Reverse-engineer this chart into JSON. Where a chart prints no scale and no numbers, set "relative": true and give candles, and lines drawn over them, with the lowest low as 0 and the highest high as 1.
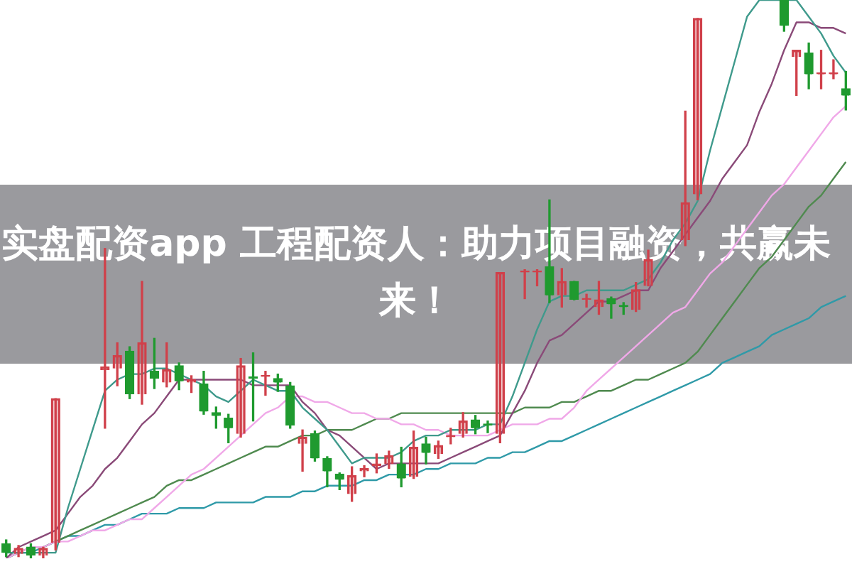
{
  "chart_data": {
    "type": "candlestick",
    "title": "实盘配资app 工程配资人：助力项目融资，共赢未来！",
    "relative": true,
    "categories": [
      null,
      null,
      null,
      null,
      null,
      null,
      null,
      null,
      null,
      null,
      null,
      null,
      null,
      null,
      null,
      null,
      null,
      null,
      null,
      null,
      null,
      null,
      null,
      null,
      null,
      null,
      null,
      null,
      null,
      null,
      null,
      null,
      null,
      null,
      null,
      null,
      null,
      null,
      null,
      null,
      null,
      null,
      null,
      null,
      null,
      null,
      null,
      null,
      null,
      null,
      null,
      null,
      null,
      null,
      null,
      null,
      null,
      null,
      null,
      null,
      null,
      null,
      null,
      null,
      null,
      null,
      null,
      null,
      null
    ],
    "ohlc": [
      [
        0.026,
        0.033,
        0.003,
        0.01
      ],
      [
        0.008,
        0.023,
        0.003,
        0.018
      ],
      [
        0.02,
        0.026,
        0,
        0.005
      ],
      [
        0.005,
        0.02,
        0,
        0.018
      ],
      [
        0.028,
        0.286,
        0.015,
        0.286
      ],
      null,
      null,
      null,
      [
        0.338,
        0.555,
        0.233,
        0.343
      ],
      [
        0.34,
        0.386,
        0.309,
        0.363
      ],
      [
        0.371,
        0.379,
        0.286,
        0.294
      ],
      [
        0.294,
        0.496,
        0.276,
        0.386
      ],
      [
        0.335,
        0.394,
        0.304,
        0.322
      ],
      [
        0.315,
        0.386,
        0.307,
        0.338
      ],
      [
        0.345,
        0.35,
        0.302,
        0.317
      ],
      [
        0.315,
        0.327,
        0.297,
        0.32
      ],
      [
        0.312,
        0.335,
        0.258,
        0.263
      ],
      [
        0.261,
        0.271,
        0.233,
        0.256
      ],
      [
        0.251,
        0.258,
        0.207,
        0.233
      ],
      [
        0.223,
        0.358,
        0.217,
        0.345
      ],
      [
        0.325,
        0.368,
        0.246,
        0.322
      ],
      [
        0.325,
        0.335,
        0.292,
        0.327
      ],
      [
        0.322,
        0.33,
        0.299,
        0.315
      ],
      [
        0.309,
        0.315,
        0.233,
        0.238
      ],
      [
        0.205,
        0.23,
        0.156,
        0.217
      ],
      [
        0.223,
        0.228,
        0.174,
        0.179
      ],
      [
        0.179,
        0.182,
        0.128,
        0.156
      ],
      [
        0.151,
        0.153,
        0.123,
        0.141
      ],
      [
        0.115,
        0.164,
        0.102,
        0.148
      ],
      [
        0.156,
        0.166,
        0.146,
        0.161
      ],
      [
        0.166,
        0.187,
        0.153,
        0.169
      ],
      [
        0.169,
        0.192,
        0.161,
        0.184
      ],
      [
        0.169,
        0.199,
        0.128,
        0.143
      ],
      [
        0.146,
        0.228,
        0.143,
        0.199
      ],
      [
        0.205,
        0.217,
        0.169,
        0.189
      ],
      [
        0.187,
        0.21,
        0.179,
        0.202
      ],
      [
        0.217,
        0.233,
        0.205,
        0.22
      ],
      [
        0.223,
        0.261,
        0.217,
        0.246
      ],
      [
        0.248,
        0.256,
        0.223,
        0.233
      ],
      [
        0.24,
        0.246,
        0.225,
        0.238
      ],
      [
        0.223,
        0.512,
        0.207,
        0.512
      ],
      null,
      [
        0.512,
        0.517,
        0.465,
        0.514
      ],
      [
        0.512,
        0.517,
        0.488,
        0.514
      ],
      [
        0.522,
        0.642,
        0.458,
        0.471
      ],
      [
        0.471,
        0.519,
        0.45,
        0.496
      ],
      [
        0.496,
        0.496,
        0.463,
        0.463
      ],
      [
        0.463,
        0.473,
        0.45,
        0.465
      ],
      [
        0.45,
        0.496,
        0.437,
        0.463
      ],
      [
        0.465,
        0.468,
        0.43,
        0.455
      ],
      [
        0.453,
        0.458,
        0.437,
        0.45
      ],
      [
        0.445,
        0.494,
        0.442,
        0.481
      ],
      [
        0.488,
        0.552,
        0.488,
        0.535
      ],
      null,
      null,
      [
        0.57,
        0.801,
        0.56,
        0.637
      ],
      [
        0.652,
        0.967,
        0.642,
        0.967
      ],
      null,
      null,
      null,
      null,
      null,
      null,
      [
        1,
        1,
        0.944,
        0.954
      ],
      [
        0.898,
        0.91,
        0.829,
        0.91
      ],
      [
        0.905,
        0.923,
        0.841,
        0.867
      ],
      [
        0.867,
        0.91,
        0.841,
        0.867
      ],
      [
        0.867,
        0.893,
        0.859,
        0.867
      ],
      [
        0.841,
        0.872,
        0.803,
        0.829
      ]
    ],
    "colors": [
      "#1f9a2f",
      "#d0404a",
      "#1f9a2f",
      "#d0404a",
      "#d0404a",
      null,
      null,
      null,
      "#d0404a",
      "#d0404a",
      "#1f9a2f",
      "#d0404a",
      "#1f9a2f",
      "#d0404a",
      "#1f9a2f",
      "#d0404a",
      "#1f9a2f",
      "#1f9a2f",
      "#1f9a2f",
      "#d0404a",
      "#1f9a2f",
      "#d0404a",
      "#1f9a2f",
      "#1f9a2f",
      "#d0404a",
      "#1f9a2f",
      "#1f9a2f",
      "#1f9a2f",
      "#d0404a",
      "#d0404a",
      "#d0404a",
      "#d0404a",
      "#1f9a2f",
      "#d0404a",
      "#1f9a2f",
      "#d0404a",
      "#d0404a",
      "#d0404a",
      "#1f9a2f",
      "#1f9a2f",
      "#d0404a",
      null,
      "#d0404a",
      "#d0404a",
      "#1f9a2f",
      "#d0404a",
      "#1f9a2f",
      "#d0404a",
      "#d0404a",
      "#1f9a2f",
      "#1f9a2f",
      "#d0404a",
      "#d0404a",
      null,
      null,
      "#d0404a",
      "#d0404a",
      null,
      null,
      null,
      null,
      null,
      null,
      "#1f9a2f",
      "#d0404a",
      "#1f9a2f",
      "#d0404a",
      "#d0404a",
      "#1f9a2f"
    ],
    "series": [
      {
        "type": "line",
        "color": "#3f9a8c",
        "values": [
          0.01,
          0.01,
          0.01,
          0.01,
          0.01,
          0.09,
          0.16,
          0.23,
          0.3,
          0.32,
          0.33,
          0.33,
          0.34,
          0.34,
          0.33,
          0.32,
          0.31,
          0.29,
          0.28,
          0.3,
          0.32,
          0.31,
          0.3,
          0.3,
          0.27,
          0.25,
          0.23,
          0.2,
          0.17,
          0.18,
          0.18,
          0.18,
          0.19,
          0.21,
          0.22,
          0.22,
          0.23,
          0.23,
          0.23,
          0.24,
          0.24,
          0.29,
          0.35,
          0.41,
          0.46,
          0.47,
          0.47,
          0.48,
          0.48,
          0.48,
          0.48,
          0.49,
          0.5,
          0.53,
          0.57,
          0.6,
          0.64,
          0.73,
          0.81,
          0.89,
          0.97,
          1,
          1,
          1,
          1,
          0.97,
          0.94,
          0.9,
          0.87
        ]
      },
      {
        "type": "line",
        "color": "#8a4a78",
        "values": [
          0,
          0.02,
          0.03,
          0.04,
          0.05,
          0.08,
          0.11,
          0.13,
          0.16,
          0.18,
          0.21,
          0.24,
          0.26,
          0.29,
          0.32,
          0.32,
          0.32,
          0.32,
          0.32,
          0.32,
          0.31,
          0.31,
          0.31,
          0.31,
          0.28,
          0.26,
          0.23,
          0.22,
          0.2,
          0.18,
          0.16,
          0.17,
          0.17,
          0.17,
          0.17,
          0.17,
          0.18,
          0.19,
          0.2,
          0.21,
          0.22,
          0.26,
          0.3,
          0.35,
          0.39,
          0.4,
          0.42,
          0.44,
          0.46,
          0.46,
          0.47,
          0.48,
          0.48,
          0.52,
          0.55,
          0.58,
          0.61,
          0.64,
          0.68,
          0.71,
          0.74,
          0.8,
          0.85,
          0.91,
          0.96,
          0.96,
          0.95,
          0.95,
          0.94
        ]
      },
      {
        "type": "line",
        "color": "#f0a8e8",
        "values": [
          0,
          0.01,
          0.02,
          0.02,
          0.03,
          0.03,
          0.04,
          0.05,
          0.05,
          0.06,
          0.07,
          0.07,
          0.09,
          0.11,
          0.13,
          0.15,
          0.16,
          0.18,
          0.2,
          0.22,
          0.24,
          0.26,
          0.27,
          0.29,
          0.29,
          0.28,
          0.28,
          0.27,
          0.26,
          0.26,
          0.25,
          0.25,
          0.24,
          0.24,
          0.23,
          0.23,
          0.22,
          0.22,
          0.22,
          0.22,
          0.23,
          0.24,
          0.24,
          0.24,
          0.25,
          0.25,
          0.27,
          0.3,
          0.32,
          0.34,
          0.36,
          0.38,
          0.4,
          0.42,
          0.44,
          0.45,
          0.48,
          0.51,
          0.53,
          0.56,
          0.59,
          0.62,
          0.65,
          0.67,
          0.7,
          0.73,
          0.76,
          0.79,
          0.81
        ]
      },
      {
        "type": "line",
        "color": "#4f8a4f",
        "values": [
          0,
          0.01,
          0.02,
          0.02,
          0.03,
          0.04,
          0.05,
          0.06,
          0.07,
          0.08,
          0.09,
          0.1,
          0.11,
          0.13,
          0.14,
          0.14,
          0.15,
          0.16,
          0.17,
          0.18,
          0.19,
          0.2,
          0.2,
          0.21,
          0.22,
          0.22,
          0.23,
          0.23,
          0.23,
          0.24,
          0.25,
          0.25,
          0.26,
          0.26,
          0.26,
          0.26,
          0.26,
          0.26,
          0.26,
          0.26,
          0.26,
          0.26,
          0.27,
          0.27,
          0.27,
          0.28,
          0.28,
          0.29,
          0.3,
          0.3,
          0.31,
          0.32,
          0.32,
          0.33,
          0.34,
          0.35,
          0.37,
          0.4,
          0.43,
          0.46,
          0.49,
          0.52,
          0.54,
          0.57,
          0.6,
          0.63,
          0.65,
          0.68,
          0.71
        ]
      },
      {
        "type": "line",
        "color": "#2f9aa8",
        "values": [
          0,
          0.01,
          0.01,
          0.02,
          0.03,
          0.04,
          0.04,
          0.05,
          0.06,
          0.06,
          0.07,
          0.08,
          0.08,
          0.08,
          0.09,
          0.09,
          0.09,
          0.1,
          0.1,
          0.1,
          0.1,
          0.11,
          0.11,
          0.11,
          0.12,
          0.12,
          0.13,
          0.13,
          0.13,
          0.14,
          0.14,
          0.15,
          0.15,
          0.15,
          0.16,
          0.16,
          0.17,
          0.17,
          0.17,
          0.18,
          0.18,
          0.19,
          0.19,
          0.2,
          0.21,
          0.21,
          0.22,
          0.23,
          0.24,
          0.25,
          0.26,
          0.27,
          0.28,
          0.29,
          0.3,
          0.31,
          0.32,
          0.33,
          0.35,
          0.36,
          0.37,
          0.38,
          0.4,
          0.41,
          0.42,
          0.43,
          0.45,
          0.46,
          0.47
        ]
      }
    ]
  }
}
